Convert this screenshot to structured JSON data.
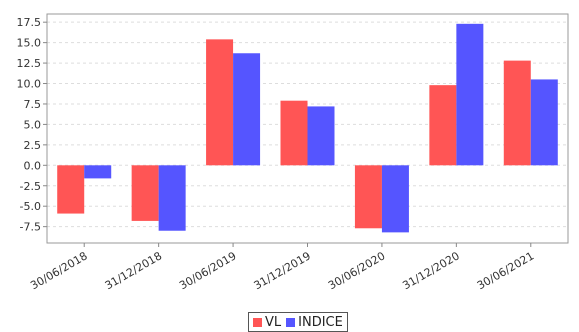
{
  "chart_data": {
    "type": "bar",
    "categories": [
      "30/06/2018",
      "31/12/2018",
      "30/06/2019",
      "31/12/2019",
      "30/06/2020",
      "31/12/2020",
      "30/06/2021"
    ],
    "series": [
      {
        "name": "VL",
        "color": "#ff5555",
        "values": [
          -5.9,
          -6.8,
          15.4,
          7.9,
          -7.7,
          9.8,
          12.8
        ]
      },
      {
        "name": "INDICE",
        "color": "#5555ff",
        "values": [
          -1.6,
          -8.0,
          13.7,
          7.2,
          -8.2,
          17.3,
          10.5
        ]
      }
    ],
    "yticks": [
      "17.5",
      "15.0",
      "12.5",
      "10.0",
      "7.5",
      "5.0",
      "2.5",
      "0.0",
      "-2.5",
      "-5.0",
      "-7.5"
    ],
    "ylim": [
      -9.5,
      18.5
    ],
    "grid": true,
    "legend_position": "bottom-center"
  }
}
